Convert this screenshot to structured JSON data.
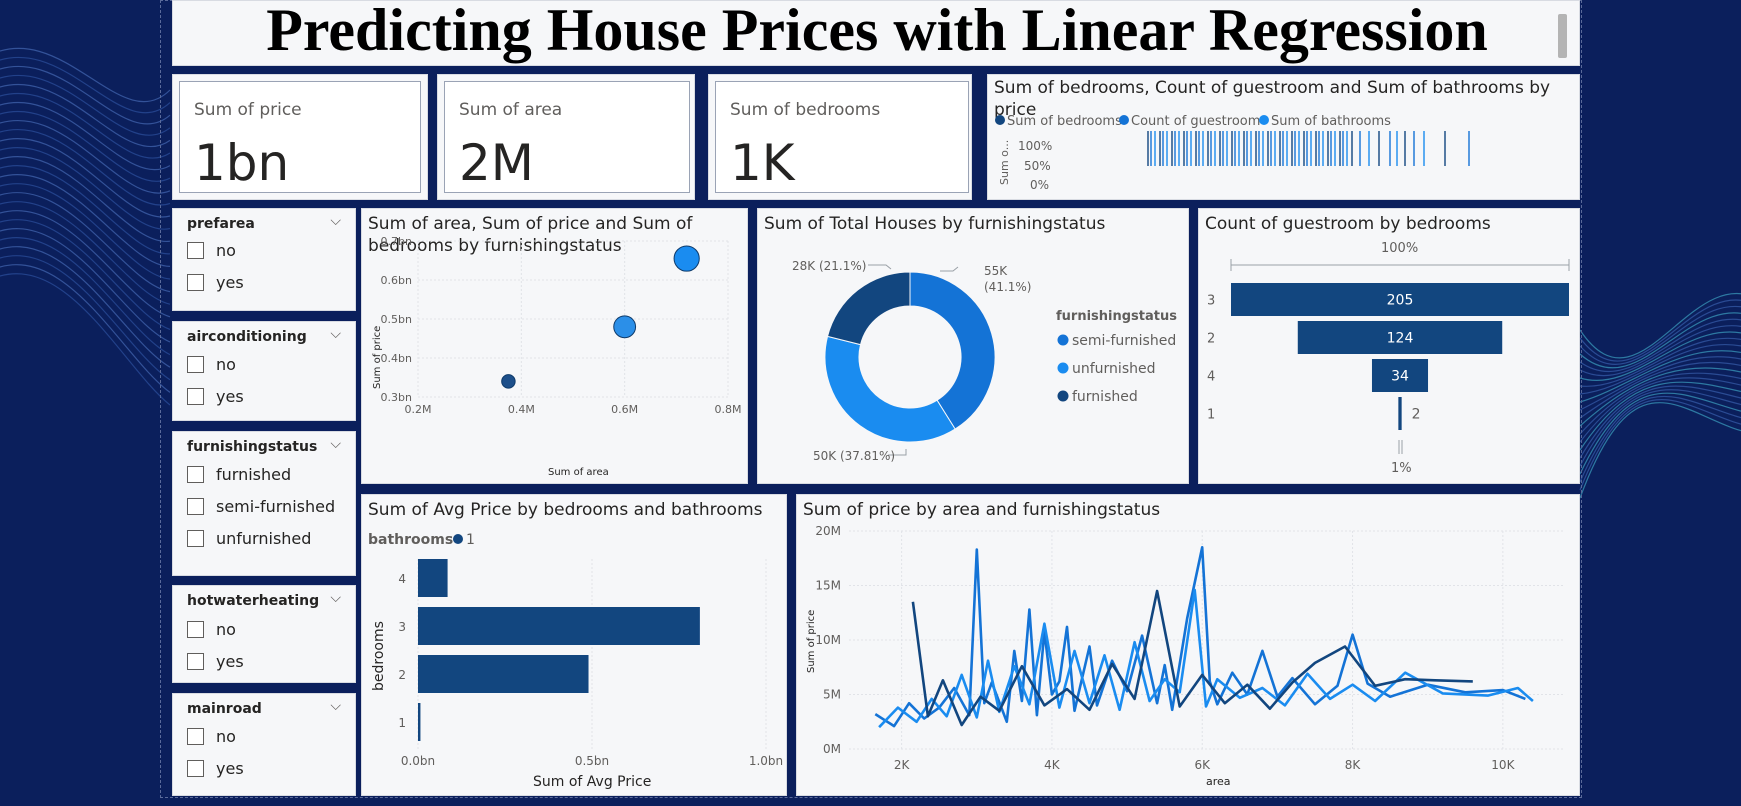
{
  "title": "Predicting House Prices with Linear Regression",
  "cards": [
    {
      "label": "Sum of price",
      "value": "1bn"
    },
    {
      "label": "Sum of area",
      "value": "2M"
    },
    {
      "label": "Sum of bedrooms",
      "value": "1K"
    }
  ],
  "slicers": [
    {
      "title": "prefarea",
      "options": [
        "no",
        "yes"
      ]
    },
    {
      "title": "airconditioning",
      "options": [
        "no",
        "yes"
      ]
    },
    {
      "title": "furnishingstatus",
      "options": [
        "furnished",
        "semi-furnished",
        "unfurnished"
      ]
    },
    {
      "title": "hotwaterheating",
      "options": [
        "no",
        "yes"
      ]
    },
    {
      "title": "mainroad",
      "options": [
        "no",
        "yes"
      ]
    }
  ],
  "colors": {
    "dark": "#12467f",
    "mid": "#1473d6",
    "light": "#1a8cf0",
    "navy_bg": "#0b1f5c"
  },
  "visuals": {
    "top_right": {
      "title": "Sum of bedrooms, Count of guestroom and Sum of bathrooms by price",
      "legend": [
        "Sum of bedrooms",
        "Count of guestroom",
        "Sum of bathrooms"
      ],
      "y_label": "Sum o...",
      "y_ticks": [
        "100%",
        "50%",
        "0%"
      ]
    },
    "scatter": {
      "title_line1": "Sum of area, Sum of price and Sum of",
      "title_line2": "bedrooms by furnishingstatus",
      "x_label": "Sum of area",
      "y_label": "Sum of price",
      "x_ticks": [
        "0.2M",
        "0.4M",
        "0.6M",
        "0.8M"
      ],
      "y_ticks": [
        "0.7bn",
        "0.6bn",
        "0.5bn",
        "0.4bn",
        "0.3bn"
      ]
    },
    "donut": {
      "title": "Sum of Total Houses by furnishingstatus",
      "legend_title": "furnishingstatus",
      "legend": [
        "semi-furnished",
        "unfurnished",
        "furnished"
      ],
      "labels": [
        "55K",
        "(41.1%)",
        "50K (37.81%)",
        "28K (21.1%)"
      ]
    },
    "funnel": {
      "title": "Count of guestroom by bedrooms",
      "top_pct": "100%",
      "bottom_pct": "1%"
    },
    "bar": {
      "title": "Sum of Avg Price by bedrooms and bathrooms",
      "legend_title": "bathrooms",
      "legend_item": "1",
      "x_label": "Sum of Avg Price",
      "y_label": "bedrooms",
      "x_ticks": [
        "0.0bn",
        "0.5bn",
        "1.0bn"
      ]
    },
    "line": {
      "title": "Sum of price by area and furnishingstatus",
      "x_label": "area",
      "y_label": "Sum of price",
      "x_ticks": [
        "2K",
        "4K",
        "6K",
        "8K",
        "10K"
      ],
      "y_ticks": [
        "20M",
        "15M",
        "10M",
        "5M",
        "0M"
      ]
    }
  },
  "chart_data": [
    {
      "type": "scatter",
      "title": "Sum of area, Sum of price and Sum of bedrooms by furnishingstatus",
      "xlabel": "Sum of area",
      "ylabel": "Sum of price",
      "xlim": [
        0.2,
        0.8
      ],
      "ylim": [
        0.3,
        0.7
      ],
      "x_units": "M",
      "y_units": "bn",
      "points": [
        {
          "x": 0.72,
          "y": 0.655,
          "size": 3,
          "color": "#1a8cf0"
        },
        {
          "x": 0.6,
          "y": 0.48,
          "size": 2.6,
          "color": "#2b8fe8"
        },
        {
          "x": 0.375,
          "y": 0.34,
          "size": 1.6,
          "color": "#1d4f8a"
        }
      ]
    },
    {
      "type": "pie",
      "title": "Sum of Total Houses by furnishingstatus",
      "donut": true,
      "categories": [
        "semi-furnished",
        "unfurnished",
        "furnished"
      ],
      "values": [
        41.1,
        37.81,
        21.1
      ],
      "colors": [
        "#1473d6",
        "#1a8cf0",
        "#12467f"
      ]
    },
    {
      "type": "bar",
      "orientation": "funnel",
      "title": "Count of guestroom by bedrooms",
      "categories": [
        "3",
        "2",
        "4",
        "1"
      ],
      "values": [
        205,
        124,
        34,
        2
      ],
      "color": "#12467f"
    },
    {
      "type": "bar",
      "orientation": "horizontal",
      "title": "Sum of Avg Price by bedrooms and bathrooms",
      "categories": [
        "4",
        "3",
        "2",
        "1"
      ],
      "values": [
        0.085,
        0.81,
        0.49,
        0.007
      ],
      "xlim": [
        0,
        1.0
      ],
      "x_units": "bn",
      "series_name": "1",
      "color": "#12467f"
    },
    {
      "type": "line",
      "title": "Sum of price by area and furnishingstatus",
      "xlabel": "area",
      "ylabel": "Sum of price",
      "xlim": [
        1300,
        10800
      ],
      "ylim": [
        0,
        20
      ],
      "y_units": "M",
      "series": [
        {
          "name": "semi-furnished",
          "color": "#1473d6",
          "x": [
            1650,
            1900,
            2100,
            2300,
            2500,
            2700,
            2900,
            3000,
            3100,
            3200,
            3400,
            3500,
            3600,
            3700,
            3800,
            3900,
            4000,
            4100,
            4200,
            4300,
            4500,
            4600,
            4800,
            5000,
            5200,
            5400,
            5500,
            5600,
            5800,
            6000,
            6100,
            6200,
            6400,
            6600,
            6800,
            7000,
            7200,
            7500,
            7800,
            8000,
            8200,
            8500,
            9000,
            9500,
            10000,
            10300
          ],
          "y": [
            3.2,
            2.1,
            4.2,
            2.8,
            3.8,
            5.6,
            3.1,
            18.3,
            4.2,
            6.1,
            2.5,
            9.0,
            4.4,
            12.8,
            3.1,
            10.8,
            5.0,
            6.2,
            11.2,
            3.5,
            9.4,
            4.0,
            8.1,
            5.3,
            10.4,
            4.2,
            7.7,
            3.6,
            12.0,
            18.5,
            6.2,
            4.1,
            7.0,
            5.0,
            9.0,
            4.8,
            6.5,
            4.1,
            5.8,
            10.5,
            6.0,
            4.8,
            5.9,
            5.2,
            5.4,
            4.6
          ]
        },
        {
          "name": "unfurnished",
          "color": "#1a8cf0",
          "x": [
            1700,
            1950,
            2200,
            2400,
            2600,
            2800,
            3000,
            3150,
            3300,
            3500,
            3700,
            3900,
            4100,
            4300,
            4500,
            4700,
            4900,
            5100,
            5300,
            5500,
            5700,
            5900,
            6050,
            6200,
            6500,
            6800,
            7100,
            7400,
            7700,
            8000,
            8300,
            8700,
            9200,
            9800,
            10200,
            10400
          ],
          "y": [
            2.0,
            3.8,
            2.5,
            4.6,
            3.0,
            6.8,
            2.9,
            8.1,
            3.4,
            7.6,
            4.1,
            11.5,
            3.8,
            9.0,
            4.2,
            8.6,
            3.6,
            9.8,
            4.4,
            6.4,
            5.2,
            14.6,
            3.9,
            6.4,
            4.7,
            5.6,
            4.0,
            6.9,
            4.6,
            5.9,
            4.4,
            7.0,
            5.1,
            4.9,
            5.6,
            4.4
          ]
        },
        {
          "name": "furnished",
          "color": "#12467f",
          "x": [
            2150,
            2350,
            2550,
            2800,
            3050,
            3300,
            3600,
            3900,
            4200,
            4500,
            4800,
            5100,
            5400,
            5700,
            6000,
            6300,
            6600,
            6900,
            7200,
            7500,
            7900,
            8300,
            8700,
            9100,
            9600
          ],
          "y": [
            13.5,
            3.0,
            6.3,
            2.2,
            4.8,
            3.5,
            7.6,
            4.0,
            5.5,
            3.6,
            7.8,
            4.6,
            14.5,
            3.9,
            6.8,
            4.2,
            5.9,
            3.7,
            6.1,
            7.9,
            9.4,
            5.8,
            6.4,
            6.3,
            6.2
          ]
        }
      ]
    }
  ]
}
